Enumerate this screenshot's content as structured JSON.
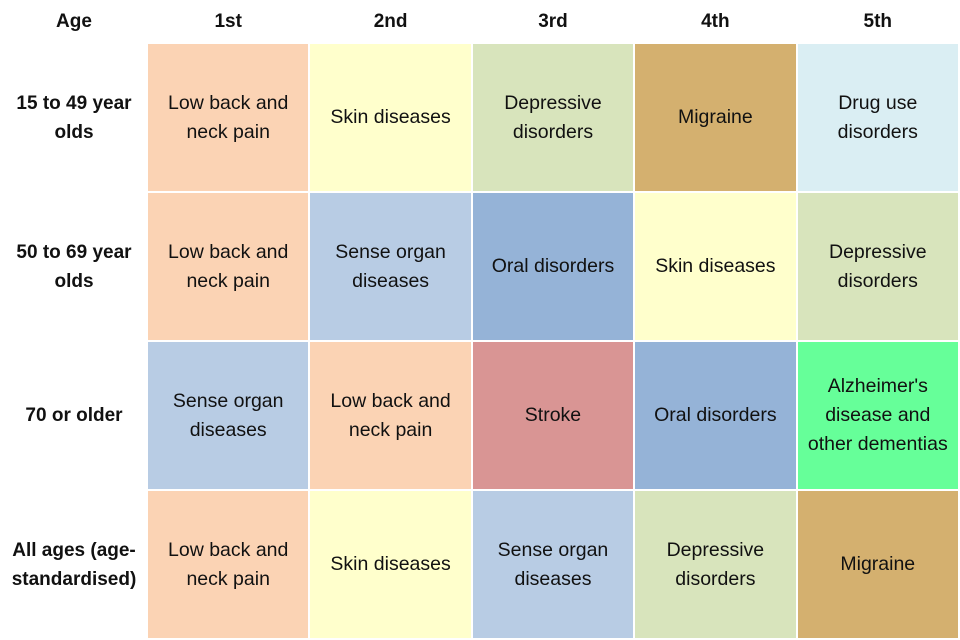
{
  "table": {
    "header": [
      "Age",
      "1st",
      "2nd",
      "3rd",
      "4th",
      "5th"
    ],
    "rows": [
      {
        "label": "15 to 49 year olds",
        "cells": [
          "Low back and neck pain",
          "Skin diseases",
          "Depressive disorders",
          "Migraine",
          "Drug use disorders"
        ],
        "colors": [
          "#fbd3b4",
          "#ffffcc",
          "#d8e4bc",
          "#d4b06f",
          "#daeef3"
        ]
      },
      {
        "label": "50 to 69 year olds",
        "cells": [
          "Low back and neck pain",
          "Sense organ diseases",
          "Oral disorders",
          "Skin diseases",
          "Depressive disorders"
        ],
        "colors": [
          "#fbd3b4",
          "#b8cce4",
          "#95b3d7",
          "#ffffcc",
          "#d8e4bc"
        ]
      },
      {
        "label": "70 or older",
        "cells": [
          "Sense organ diseases",
          "Low back and neck pain",
          "Stroke",
          "Oral disorders",
          "Alzheimer's disease and other dementias"
        ],
        "colors": [
          "#b8cce4",
          "#fbd3b4",
          "#d99594",
          "#95b3d7",
          "#66ff99"
        ]
      },
      {
        "label": "All ages (age-standardised)",
        "cells": [
          "Low back and neck pain",
          "Skin diseases",
          "Sense organ diseases",
          "Depressive disorders",
          "Migraine"
        ],
        "colors": [
          "#fbd3b4",
          "#ffffcc",
          "#b8cce4",
          "#d8e4bc",
          "#d4b06f"
        ]
      }
    ]
  }
}
